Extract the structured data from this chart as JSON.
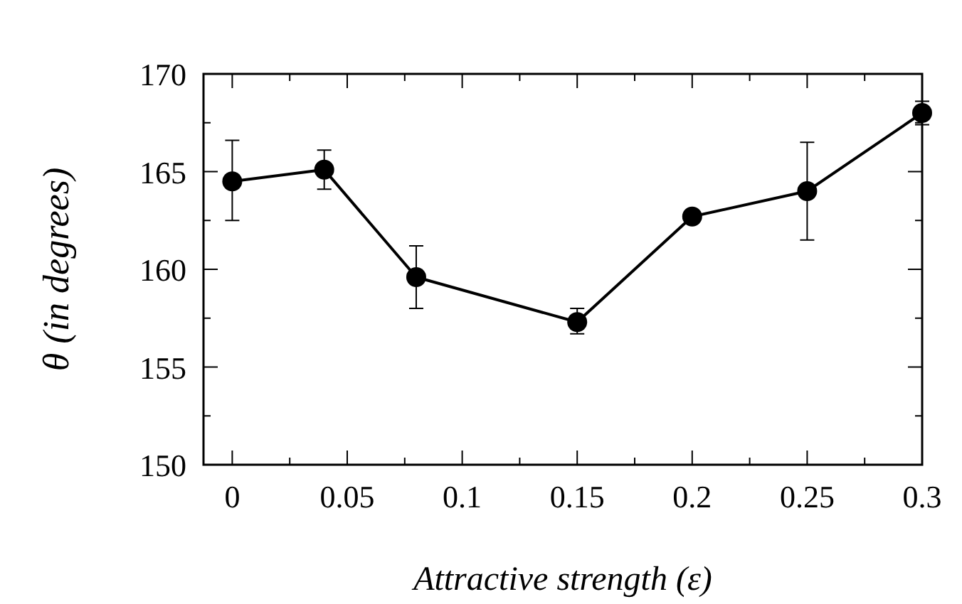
{
  "chart_data": {
    "type": "line",
    "xlabel": "Attractive strength (ε)",
    "ylabel": "θ (in degrees)",
    "x": [
      0,
      0.04,
      0.08,
      0.15,
      0.2,
      0.25,
      0.3
    ],
    "values": [
      164.5,
      165.1,
      159.6,
      157.3,
      162.7,
      164.0,
      168.0
    ],
    "errors": [
      [
        162.5,
        166.6
      ],
      [
        164.1,
        166.1
      ],
      [
        158.0,
        161.2
      ],
      [
        156.7,
        158.0
      ],
      null,
      [
        161.5,
        166.5
      ],
      [
        167.4,
        168.6
      ]
    ],
    "color": "#000000",
    "marker": "circle",
    "line_style": "solid",
    "xlim": [
      -0.0125,
      0.3
    ],
    "xticks": [
      0,
      {
        "value": 0.025,
        "label": null
      },
      0.05,
      {
        "value": 0.075,
        "label": null
      },
      0.1,
      {
        "value": 0.125,
        "label": null
      },
      0.15,
      {
        "value": 0.175,
        "label": null
      },
      0.2,
      {
        "value": 0.225,
        "label": null
      },
      0.25,
      {
        "value": 0.275,
        "label": null
      },
      0.3
    ],
    "ylim": [
      150,
      170
    ],
    "yticks": [
      150,
      {
        "value": 152.5,
        "label": null
      },
      155,
      {
        "value": 157.5,
        "label": null
      },
      160,
      {
        "value": 162.5,
        "label": null
      },
      165,
      {
        "value": 167.5,
        "label": null
      },
      170
    ]
  }
}
